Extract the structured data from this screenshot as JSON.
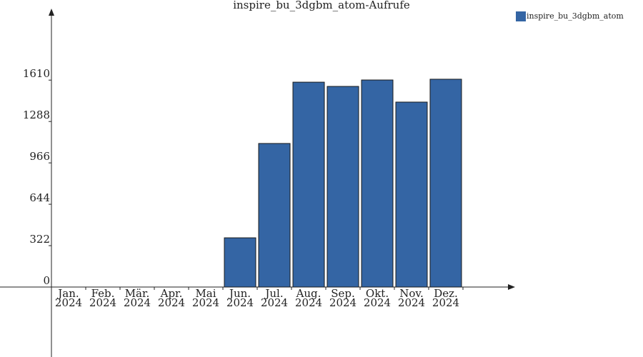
{
  "chart_data": {
    "type": "bar",
    "title": "inspire_bu_3dgbm_atom-Aufrufe",
    "categories": [
      "Jan.\n2024",
      "Feb.\n2024",
      "Mär.\n2024",
      "Apr.\n2024",
      "Mai\n2024",
      "Jun.\n2024",
      "Jul.\n2024",
      "Aug.\n2024",
      "Sep.\n2024",
      "Okt.\n2024",
      "Nov.\n2024",
      "Dez.\n2024"
    ],
    "series": [
      {
        "name": "inspire_bu_3dgbm_atom",
        "color": "#3465a4",
        "values": [
          0,
          0,
          0,
          0,
          0,
          383,
          1117,
          1594,
          1561,
          1611,
          1439,
          1617
        ]
      }
    ],
    "ylim": [
      0,
      2150
    ],
    "yticks": [
      0,
      322,
      644,
      966,
      1288,
      1610
    ],
    "legend": "upper right"
  }
}
